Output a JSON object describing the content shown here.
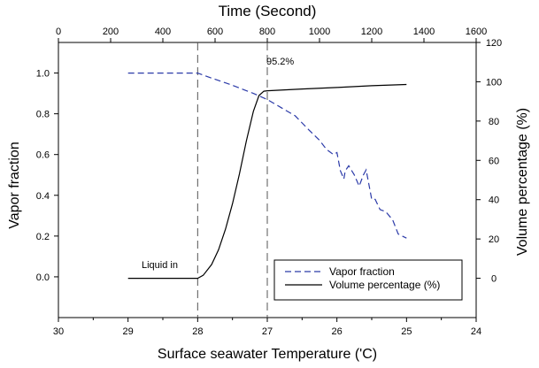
{
  "chart_data": {
    "type": "line",
    "bottom_axis": {
      "label": "Surface seawater Temperature ('C)",
      "range": [
        30,
        24
      ],
      "ticks": [
        "30",
        "29",
        "28",
        "27",
        "26",
        "25",
        "24"
      ]
    },
    "top_axis": {
      "label": "Time (Second)",
      "range": [
        0,
        1600
      ],
      "ticks": [
        "0",
        "200",
        "400",
        "600",
        "800",
        "1000",
        "1200",
        "1400",
        "1600"
      ]
    },
    "left_axis": {
      "label": "Vapor fraction",
      "range": [
        -0.2,
        1.15
      ],
      "ticks": [
        "0.0",
        "0.2",
        "0.4",
        "0.6",
        "0.8",
        "1.0"
      ]
    },
    "right_axis": {
      "label": "Volume percentage (%)",
      "range": [
        -20,
        120
      ],
      "ticks": [
        "0",
        "20",
        "40",
        "60",
        "80",
        "100",
        "120"
      ]
    },
    "reference_lines": [
      28,
      27
    ],
    "annotations": {
      "peak": "95.2%",
      "start": "Liquid in"
    },
    "legend": {
      "position": "bottom-right",
      "items": [
        "Vapor fraction",
        "Volume percentage (%)"
      ]
    },
    "series": [
      {
        "name": "Vapor fraction",
        "axis": "left",
        "color": "#2b3aa8",
        "style": "dashed",
        "points": [
          [
            29.0,
            1.0
          ],
          [
            28.7,
            1.0
          ],
          [
            28.4,
            1.0
          ],
          [
            28.0,
            1.0
          ],
          [
            27.8,
            0.975
          ],
          [
            27.5,
            0.94
          ],
          [
            27.2,
            0.9
          ],
          [
            27.0,
            0.87
          ],
          [
            26.8,
            0.83
          ],
          [
            26.6,
            0.79
          ],
          [
            26.4,
            0.72
          ],
          [
            26.25,
            0.67
          ],
          [
            26.15,
            0.625
          ],
          [
            26.05,
            0.6
          ],
          [
            26.0,
            0.61
          ],
          [
            25.95,
            0.52
          ],
          [
            25.9,
            0.48
          ],
          [
            25.88,
            0.52
          ],
          [
            25.83,
            0.545
          ],
          [
            25.75,
            0.5
          ],
          [
            25.68,
            0.445
          ],
          [
            25.62,
            0.5
          ],
          [
            25.58,
            0.525
          ],
          [
            25.5,
            0.38
          ],
          [
            25.45,
            0.38
          ],
          [
            25.38,
            0.33
          ],
          [
            25.3,
            0.32
          ],
          [
            25.2,
            0.28
          ],
          [
            25.12,
            0.21
          ],
          [
            25.06,
            0.2
          ],
          [
            25.0,
            0.19
          ]
        ]
      },
      {
        "name": "Volume percentage (%)",
        "axis": "right",
        "color": "#000000",
        "style": "solid",
        "points": [
          [
            29.0,
            0.0
          ],
          [
            28.5,
            0.0
          ],
          [
            28.0,
            0.0
          ],
          [
            27.92,
            1.5
          ],
          [
            27.8,
            7.0
          ],
          [
            27.7,
            14.5
          ],
          [
            27.6,
            25.0
          ],
          [
            27.5,
            38.0
          ],
          [
            27.4,
            53.0
          ],
          [
            27.3,
            70.0
          ],
          [
            27.2,
            85.0
          ],
          [
            27.12,
            93.0
          ],
          [
            27.05,
            95.2
          ],
          [
            27.0,
            95.4
          ],
          [
            26.5,
            96.3
          ],
          [
            26.0,
            97.1
          ],
          [
            25.5,
            98.0
          ],
          [
            25.0,
            98.6
          ]
        ]
      }
    ]
  }
}
